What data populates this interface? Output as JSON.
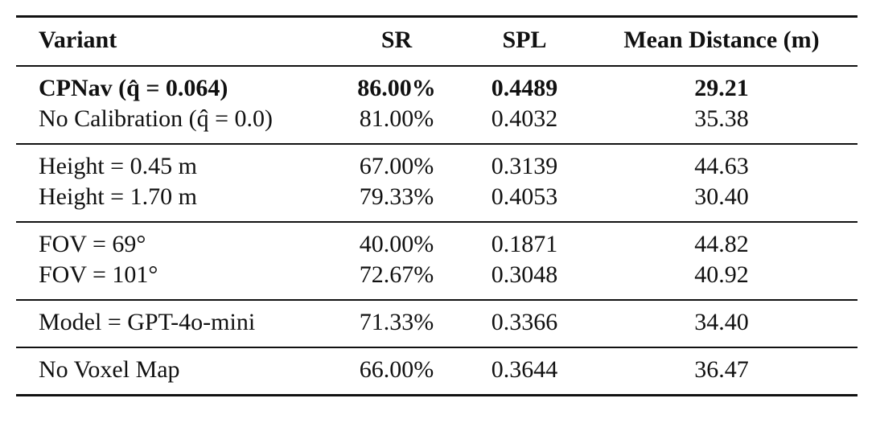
{
  "table": {
    "header": [
      "Variant",
      "SR",
      "SPL",
      "Mean Distance (m)"
    ],
    "groups": [
      [
        {
          "cells": [
            "CPNav (q̂ = 0.064)",
            "86.00%",
            "0.4489",
            "29.21"
          ],
          "bold": true
        },
        {
          "cells": [
            "No Calibration (q̂ = 0.0)",
            "81.00%",
            "0.4032",
            "35.38"
          ]
        }
      ],
      [
        {
          "cells": [
            "Height = 0.45 m",
            "67.00%",
            "0.3139",
            "44.63"
          ]
        },
        {
          "cells": [
            "Height = 1.70 m",
            "79.33%",
            "0.4053",
            "30.40"
          ]
        }
      ],
      [
        {
          "cells": [
            "FOV = 69°",
            "40.00%",
            "0.1871",
            "44.82"
          ]
        },
        {
          "cells": [
            "FOV = 101°",
            "72.67%",
            "0.3048",
            "40.92"
          ]
        }
      ],
      [
        {
          "cells": [
            "Model = GPT-4o-mini",
            "71.33%",
            "0.3366",
            "34.40"
          ]
        }
      ],
      [
        {
          "cells": [
            "No Voxel Map",
            "66.00%",
            "0.3644",
            "36.47"
          ]
        }
      ]
    ]
  }
}
